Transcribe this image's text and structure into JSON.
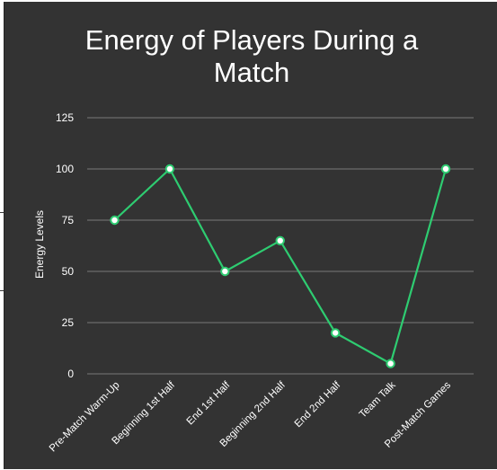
{
  "colors": {
    "background": "#333333",
    "text": "#ffffff",
    "grid": "#7a7a7a",
    "line": "#2ecc71",
    "marker_fill": "#ffffff",
    "marker_stroke": "#2ecc71"
  },
  "chart_data": {
    "type": "line",
    "title": "Energy of Players During a Match",
    "title_lines": [
      "Energy of Players During a",
      "Match"
    ],
    "xlabel": "",
    "ylabel": "Energy Levels",
    "categories": [
      "Pre-Match Warm-Up",
      "Beginning 1st Half",
      "End 1st Half",
      "Beginning 2nd Half",
      "End 2nd Half",
      "Team Talk",
      "Post-Match Games"
    ],
    "values": [
      75,
      100,
      50,
      65,
      20,
      5,
      100
    ],
    "ylim": [
      0,
      125
    ],
    "yticks": [
      0,
      25,
      50,
      75,
      100,
      125
    ],
    "grid": true,
    "legend": "none"
  }
}
